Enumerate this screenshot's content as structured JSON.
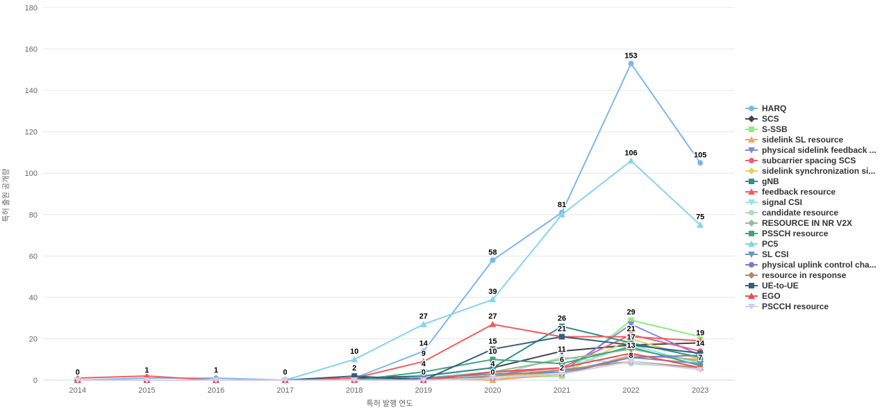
{
  "chart_data": {
    "type": "line",
    "title": "",
    "xlabel": "특허 발행 연도",
    "ylabel": "특허 출원 공개량",
    "categories": [
      "2014",
      "2015",
      "2016",
      "2017",
      "2018",
      "2019",
      "2020",
      "2021",
      "2022",
      "2023"
    ],
    "ylim": [
      0,
      180
    ],
    "ytick_step": 20,
    "grid": true,
    "legend_position": "right",
    "series": [
      {
        "name": "HARQ",
        "color": "#7cb5ec",
        "marker": "circle",
        "values": [
          0,
          1,
          1,
          0,
          1,
          14,
          58,
          81,
          153,
          105
        ],
        "labeled_years": [
          "2014",
          "2015",
          "2016",
          "2017",
          "2019",
          "2020",
          "2021",
          "2022",
          "2023"
        ]
      },
      {
        "name": "SCS",
        "color": "#434348",
        "marker": "diamond",
        "values": [
          0,
          0,
          0,
          0,
          1,
          2,
          6,
          14,
          17,
          18
        ],
        "labeled_years": [
          "2022"
        ]
      },
      {
        "name": "S-SSB",
        "color": "#90ed7d",
        "marker": "square",
        "values": [
          0,
          0,
          0,
          0,
          0,
          0,
          1,
          2,
          29,
          21
        ],
        "labeled_years": [
          "2021",
          "2022"
        ]
      },
      {
        "name": "sidelink SL resource",
        "color": "#f7a35c",
        "marker": "triangle",
        "values": [
          0,
          0,
          0,
          0,
          0,
          1,
          0,
          3,
          12,
          10
        ],
        "labeled_years": [
          "2020"
        ]
      },
      {
        "name": "physical sidelink feedback ...",
        "color": "#8085e9",
        "marker": "triangle-down",
        "values": [
          0,
          0,
          0,
          0,
          0,
          1,
          2,
          4,
          27,
          12
        ],
        "labeled_years": []
      },
      {
        "name": "subcarrier spacing SCS",
        "color": "#f15c80",
        "marker": "circle",
        "values": [
          0,
          0,
          0,
          0,
          0,
          1,
          3,
          6,
          22,
          14
        ],
        "labeled_years": [
          "2021",
          "2023"
        ]
      },
      {
        "name": "sidelink synchronization si...",
        "color": "#e4d354",
        "marker": "diamond",
        "values": [
          0,
          0,
          0,
          0,
          0,
          0,
          2,
          3,
          20,
          10
        ],
        "labeled_years": []
      },
      {
        "name": "gNB",
        "color": "#2b908f",
        "marker": "square",
        "values": [
          0,
          0,
          0,
          0,
          0,
          2,
          6,
          26,
          18,
          11
        ],
        "labeled_years": [
          "2021"
        ]
      },
      {
        "name": "feedback resource",
        "color": "#f45b5b",
        "marker": "triangle",
        "values": [
          1,
          2,
          0,
          0,
          1,
          9,
          27,
          21,
          21,
          19
        ],
        "labeled_years": [
          "2019",
          "2020",
          "2021",
          "2022",
          "2023"
        ]
      },
      {
        "name": "signal CSI",
        "color": "#91e8e1",
        "marker": "triangle-down",
        "values": [
          0,
          0,
          0,
          0,
          0,
          1,
          2,
          5,
          17,
          8
        ],
        "labeled_years": []
      },
      {
        "name": "candidate resource",
        "color": "#aedbc5",
        "marker": "circle",
        "values": [
          0,
          0,
          0,
          0,
          0,
          0,
          2,
          11,
          8,
          6
        ],
        "labeled_years": [
          "2021",
          "2022"
        ]
      },
      {
        "name": "RESOURCE IN NR V2X",
        "color": "#8ebf8e",
        "marker": "diamond",
        "values": [
          0,
          0,
          0,
          0,
          0,
          1,
          4,
          10,
          15,
          9
        ],
        "labeled_years": []
      },
      {
        "name": "PSSCH resource",
        "color": "#3fa47d",
        "marker": "square",
        "values": [
          0,
          0,
          0,
          0,
          0,
          4,
          10,
          8,
          16,
          7
        ],
        "labeled_years": [
          "2019",
          "2020",
          "2023"
        ]
      },
      {
        "name": "PC5",
        "color": "#86d3ec",
        "marker": "triangle",
        "values": [
          0,
          0,
          0,
          0,
          10,
          27,
          39,
          80,
          106,
          75
        ],
        "labeled_years": [
          "2018",
          "2019",
          "2020",
          "2022",
          "2023"
        ]
      },
      {
        "name": "SL CSI",
        "color": "#6e93bd",
        "marker": "triangle-down",
        "values": [
          0,
          0,
          0,
          0,
          0,
          1,
          3,
          4,
          11,
          8
        ],
        "labeled_years": []
      },
      {
        "name": "physical uplink control cha...",
        "color": "#767bd2",
        "marker": "circle",
        "values": [
          0,
          0,
          0,
          0,
          0,
          1,
          1,
          3,
          11,
          12
        ],
        "labeled_years": []
      },
      {
        "name": "resource in response",
        "color": "#b18a6d",
        "marker": "diamond",
        "values": [
          0,
          0,
          0,
          0,
          0,
          0,
          2,
          5,
          9,
          6
        ],
        "labeled_years": []
      },
      {
        "name": "UE-to-UE",
        "color": "#355e7d",
        "marker": "square",
        "values": [
          0,
          0,
          0,
          0,
          2,
          0,
          15,
          21,
          17,
          13
        ],
        "labeled_years": [
          "2018",
          "2019",
          "2020"
        ]
      },
      {
        "name": "EGO",
        "color": "#ea4d55",
        "marker": "triangle",
        "values": [
          0,
          0,
          0,
          0,
          0,
          0,
          4,
          6,
          13,
          6
        ],
        "labeled_years": [
          "2020",
          "2022"
        ]
      },
      {
        "name": "PSCCH resource",
        "color": "#d9cce7",
        "marker": "triangle-down",
        "values": [
          0,
          0,
          0,
          0,
          0,
          0,
          1,
          3,
          9,
          5
        ],
        "labeled_years": []
      }
    ]
  },
  "colors": {
    "background": "#ffffff",
    "grid": "#e6e6e6",
    "axis_line": "#ccd6eb",
    "tick_label": "#666666",
    "axis_title": "#666666",
    "legend_text": "#333333",
    "data_label": "#000000"
  }
}
